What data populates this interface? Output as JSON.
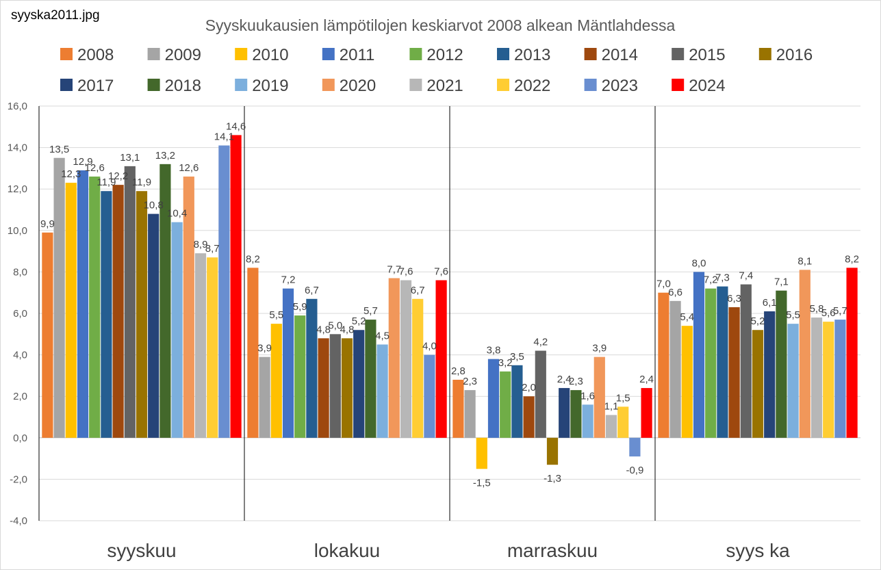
{
  "filename": "syyska2011.jpg",
  "chart_data": {
    "type": "bar",
    "title": "Syyskuukausien lämpötilojen  keskiarvot 2008 alkean Mäntlahdessa",
    "categories": [
      "syyskuu",
      "lokakuu",
      "marraskuu",
      "syys ka"
    ],
    "ylim": [
      -4.0,
      16.0
    ],
    "y_ticks": [
      "-4,0",
      "-2,0",
      "0,0",
      "2,0",
      "4,0",
      "6,0",
      "8,0",
      "10,0",
      "12,0",
      "14,0",
      "16,0"
    ],
    "grid": true,
    "legend_position": "top",
    "series": [
      {
        "name": "2008",
        "color": "#ED7D31",
        "values": [
          9.9,
          8.2,
          2.8,
          7.0
        ],
        "labels": [
          "9,9",
          "8,2",
          "2,8",
          "7,0"
        ]
      },
      {
        "name": "2009",
        "color": "#A5A5A5",
        "values": [
          13.5,
          3.9,
          2.3,
          6.6
        ],
        "labels": [
          "13,5",
          "3,9",
          "2,3",
          "6,6"
        ]
      },
      {
        "name": "2010",
        "color": "#FFC000",
        "values": [
          12.3,
          5.5,
          -1.5,
          5.4
        ],
        "labels": [
          "12,3",
          "5,5",
          "-1,5",
          "5,4"
        ]
      },
      {
        "name": "2011",
        "color": "#4472C4",
        "values": [
          12.9,
          7.2,
          3.8,
          8.0
        ],
        "labels": [
          "12,9",
          "7,2",
          "3,8",
          "8,0"
        ]
      },
      {
        "name": "2012",
        "color": "#70AD47",
        "values": [
          12.6,
          5.9,
          3.2,
          7.2
        ],
        "labels": [
          "12,6",
          "5,9",
          "3,2",
          "7,2"
        ]
      },
      {
        "name": "2013",
        "color": "#255E91",
        "values": [
          11.9,
          6.7,
          3.5,
          7.3
        ],
        "labels": [
          "11,9",
          "6,7",
          "3,5",
          "7,3"
        ]
      },
      {
        "name": "2014",
        "color": "#9E480E",
        "values": [
          12.2,
          4.8,
          2.0,
          6.3
        ],
        "labels": [
          "12,2",
          "4,8",
          "2,0",
          "6,3"
        ]
      },
      {
        "name": "2015",
        "color": "#636363",
        "values": [
          13.1,
          5.0,
          4.2,
          7.4
        ],
        "labels": [
          "13,1",
          "5,0",
          "4,2",
          "7,4"
        ]
      },
      {
        "name": "2016",
        "color": "#997300",
        "values": [
          11.9,
          4.8,
          -1.3,
          5.2
        ],
        "labels": [
          "11,9",
          "4,8",
          "-1,3",
          "5,2"
        ]
      },
      {
        "name": "2017",
        "color": "#264478",
        "values": [
          10.8,
          5.2,
          2.4,
          6.1
        ],
        "labels": [
          "10,8",
          "5,2",
          "2,4",
          "6,1"
        ]
      },
      {
        "name": "2018",
        "color": "#43682B",
        "values": [
          13.2,
          5.7,
          2.3,
          7.1
        ],
        "labels": [
          "13,2",
          "5,7",
          "2,3",
          "7,1"
        ]
      },
      {
        "name": "2019",
        "color": "#7CAFDD",
        "values": [
          10.4,
          4.5,
          1.6,
          5.5
        ],
        "labels": [
          "10,4",
          "4,5",
          "1,6",
          "5,5"
        ]
      },
      {
        "name": "2020",
        "color": "#F1975A",
        "values": [
          12.6,
          7.7,
          3.9,
          8.1
        ],
        "labels": [
          "12,6",
          "7,7",
          "3,9",
          "8,1"
        ]
      },
      {
        "name": "2021",
        "color": "#B7B7B7",
        "values": [
          8.9,
          7.6,
          1.1,
          5.8
        ],
        "labels": [
          "8,9",
          "7,6",
          "1,1",
          "5,8"
        ]
      },
      {
        "name": "2022",
        "color": "#FFCD33",
        "values": [
          8.7,
          6.7,
          1.5,
          5.6
        ],
        "labels": [
          "8,7",
          "6,7",
          "1,5",
          "5,6"
        ]
      },
      {
        "name": "2023",
        "color": "#698ED0",
        "values": [
          14.1,
          4.0,
          -0.9,
          5.7
        ],
        "labels": [
          "14,1",
          "4,0",
          "-0,9",
          "5,7"
        ]
      },
      {
        "name": "2024",
        "color": "#FF0000",
        "values": [
          14.6,
          7.6,
          2.4,
          8.2
        ],
        "labels": [
          "14,6",
          "7,6",
          "2,4",
          "8,2"
        ]
      }
    ]
  }
}
